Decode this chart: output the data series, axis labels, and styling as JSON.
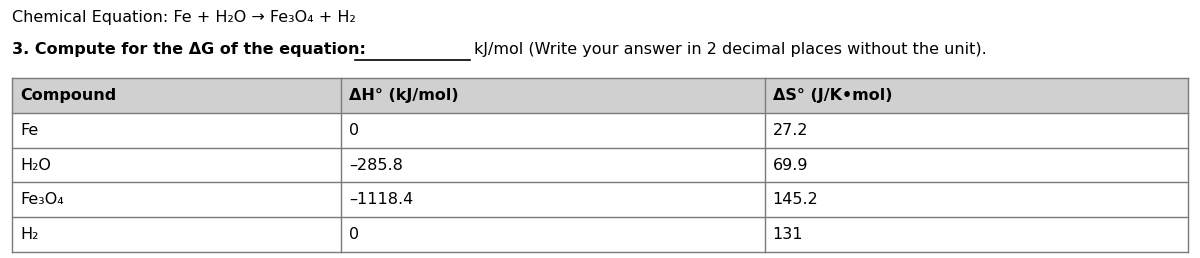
{
  "title_line": "Chemical Equation: Fe + H₂O → Fe₃O₄ + H₂",
  "subtitle_bold": "3. Compute for the ΔG of the equation:",
  "subtitle_rest": "kJ/mol (Write your answer in 2 decimal places without the unit).",
  "table_headers": [
    "Compound",
    "ΔH° (kJ/mol)",
    "ΔS° (J/K•mol)"
  ],
  "table_rows": [
    [
      "Fe",
      "0",
      "27.2"
    ],
    [
      "H₂O",
      "–285.8",
      "69.9"
    ],
    [
      "Fe₃O₄",
      "–1118.4",
      "145.2"
    ],
    [
      "H₂",
      "0",
      "131"
    ]
  ],
  "background_color": "#ffffff",
  "table_border_color": "#7a7a7a",
  "header_bg": "#d0d0d0",
  "font_size_title": 11.5,
  "font_size_subtitle": 11.5,
  "font_size_table": 11.5,
  "fig_width": 12.0,
  "fig_height": 2.58
}
